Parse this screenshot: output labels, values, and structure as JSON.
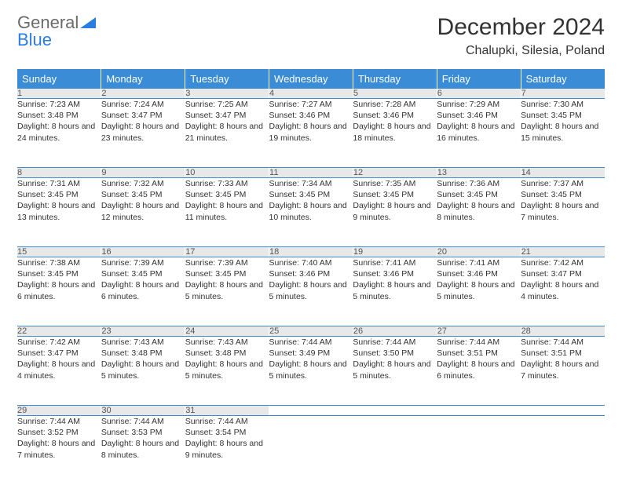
{
  "logo": {
    "word1": "General",
    "word2": "Blue",
    "shape_color": "#2a7de1",
    "text_color": "#6b6b6b"
  },
  "title": "December 2024",
  "location": "Chalupki, Silesia, Poland",
  "colors": {
    "header_bg": "#3a8cd6",
    "daynum_bg": "#e8e8e8",
    "border": "#3a8cd6"
  },
  "weekdays": [
    "Sunday",
    "Monday",
    "Tuesday",
    "Wednesday",
    "Thursday",
    "Friday",
    "Saturday"
  ],
  "weeks": [
    [
      {
        "n": "1",
        "sunrise": "7:23 AM",
        "sunset": "3:48 PM",
        "daylight": "8 hours and 24 minutes."
      },
      {
        "n": "2",
        "sunrise": "7:24 AM",
        "sunset": "3:47 PM",
        "daylight": "8 hours and 23 minutes."
      },
      {
        "n": "3",
        "sunrise": "7:25 AM",
        "sunset": "3:47 PM",
        "daylight": "8 hours and 21 minutes."
      },
      {
        "n": "4",
        "sunrise": "7:27 AM",
        "sunset": "3:46 PM",
        "daylight": "8 hours and 19 minutes."
      },
      {
        "n": "5",
        "sunrise": "7:28 AM",
        "sunset": "3:46 PM",
        "daylight": "8 hours and 18 minutes."
      },
      {
        "n": "6",
        "sunrise": "7:29 AM",
        "sunset": "3:46 PM",
        "daylight": "8 hours and 16 minutes."
      },
      {
        "n": "7",
        "sunrise": "7:30 AM",
        "sunset": "3:45 PM",
        "daylight": "8 hours and 15 minutes."
      }
    ],
    [
      {
        "n": "8",
        "sunrise": "7:31 AM",
        "sunset": "3:45 PM",
        "daylight": "8 hours and 13 minutes."
      },
      {
        "n": "9",
        "sunrise": "7:32 AM",
        "sunset": "3:45 PM",
        "daylight": "8 hours and 12 minutes."
      },
      {
        "n": "10",
        "sunrise": "7:33 AM",
        "sunset": "3:45 PM",
        "daylight": "8 hours and 11 minutes."
      },
      {
        "n": "11",
        "sunrise": "7:34 AM",
        "sunset": "3:45 PM",
        "daylight": "8 hours and 10 minutes."
      },
      {
        "n": "12",
        "sunrise": "7:35 AM",
        "sunset": "3:45 PM",
        "daylight": "8 hours and 9 minutes."
      },
      {
        "n": "13",
        "sunrise": "7:36 AM",
        "sunset": "3:45 PM",
        "daylight": "8 hours and 8 minutes."
      },
      {
        "n": "14",
        "sunrise": "7:37 AM",
        "sunset": "3:45 PM",
        "daylight": "8 hours and 7 minutes."
      }
    ],
    [
      {
        "n": "15",
        "sunrise": "7:38 AM",
        "sunset": "3:45 PM",
        "daylight": "8 hours and 6 minutes."
      },
      {
        "n": "16",
        "sunrise": "7:39 AM",
        "sunset": "3:45 PM",
        "daylight": "8 hours and 6 minutes."
      },
      {
        "n": "17",
        "sunrise": "7:39 AM",
        "sunset": "3:45 PM",
        "daylight": "8 hours and 5 minutes."
      },
      {
        "n": "18",
        "sunrise": "7:40 AM",
        "sunset": "3:46 PM",
        "daylight": "8 hours and 5 minutes."
      },
      {
        "n": "19",
        "sunrise": "7:41 AM",
        "sunset": "3:46 PM",
        "daylight": "8 hours and 5 minutes."
      },
      {
        "n": "20",
        "sunrise": "7:41 AM",
        "sunset": "3:46 PM",
        "daylight": "8 hours and 5 minutes."
      },
      {
        "n": "21",
        "sunrise": "7:42 AM",
        "sunset": "3:47 PM",
        "daylight": "8 hours and 4 minutes."
      }
    ],
    [
      {
        "n": "22",
        "sunrise": "7:42 AM",
        "sunset": "3:47 PM",
        "daylight": "8 hours and 4 minutes."
      },
      {
        "n": "23",
        "sunrise": "7:43 AM",
        "sunset": "3:48 PM",
        "daylight": "8 hours and 5 minutes."
      },
      {
        "n": "24",
        "sunrise": "7:43 AM",
        "sunset": "3:48 PM",
        "daylight": "8 hours and 5 minutes."
      },
      {
        "n": "25",
        "sunrise": "7:44 AM",
        "sunset": "3:49 PM",
        "daylight": "8 hours and 5 minutes."
      },
      {
        "n": "26",
        "sunrise": "7:44 AM",
        "sunset": "3:50 PM",
        "daylight": "8 hours and 5 minutes."
      },
      {
        "n": "27",
        "sunrise": "7:44 AM",
        "sunset": "3:51 PM",
        "daylight": "8 hours and 6 minutes."
      },
      {
        "n": "28",
        "sunrise": "7:44 AM",
        "sunset": "3:51 PM",
        "daylight": "8 hours and 7 minutes."
      }
    ],
    [
      {
        "n": "29",
        "sunrise": "7:44 AM",
        "sunset": "3:52 PM",
        "daylight": "8 hours and 7 minutes."
      },
      {
        "n": "30",
        "sunrise": "7:44 AM",
        "sunset": "3:53 PM",
        "daylight": "8 hours and 8 minutes."
      },
      {
        "n": "31",
        "sunrise": "7:44 AM",
        "sunset": "3:54 PM",
        "daylight": "8 hours and 9 minutes."
      },
      null,
      null,
      null,
      null
    ]
  ],
  "labels": {
    "sunrise": "Sunrise:",
    "sunset": "Sunset:",
    "daylight": "Daylight:"
  }
}
